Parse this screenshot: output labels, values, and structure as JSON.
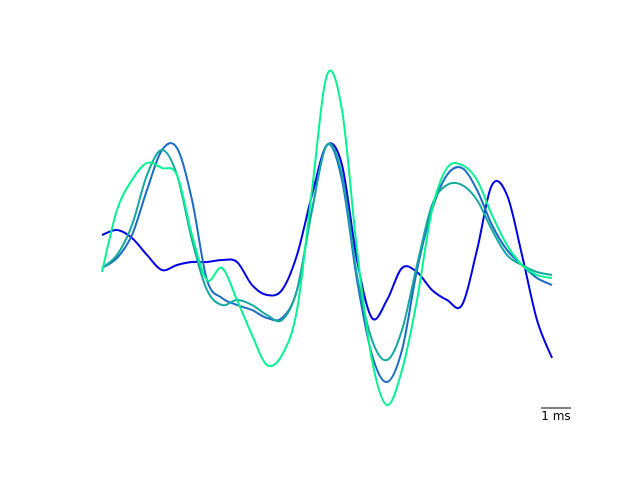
{
  "chart_data": {
    "type": "line",
    "x": [
      0,
      0.5,
      1,
      1.5,
      2,
      2.5,
      3,
      3.5,
      4,
      4.5,
      5,
      5.5,
      6,
      6.5,
      7,
      7.5,
      8,
      8.5,
      9,
      9.5,
      10,
      10.5,
      11,
      11.5,
      12,
      12.5,
      13,
      13.5,
      14,
      14.5,
      15
    ],
    "xlim": [
      0,
      15
    ],
    "ylim": [
      -15,
      21
    ],
    "series": [
      {
        "color": "#0000e6",
        "values": [
          3.5,
          4.0,
          3.2,
          1.5,
          0,
          0.5,
          0.8,
          0.8,
          1.0,
          0.8,
          -1.5,
          -2.5,
          -2.0,
          1.5,
          7.5,
          12.5,
          10.5,
          1.0,
          -4.8,
          -3.0,
          0.2,
          -0.2,
          -2.0,
          -3.0,
          -3.5,
          2.0,
          8.5,
          7.5,
          1.5,
          -5.0,
          -8.8
        ]
      },
      {
        "color": "#1c6cc4",
        "values": [
          0.2,
          1.2,
          3.5,
          8.0,
          12.0,
          12.2,
          7.0,
          -1.0,
          -2.8,
          -3.5,
          -4.0,
          -4.8,
          -4.8,
          -2.0,
          6.0,
          12.5,
          9.0,
          -1.0,
          -8.5,
          -11.2,
          -8.0,
          0,
          6.0,
          9.5,
          10.2,
          8.0,
          4.5,
          2.0,
          0.5,
          -0.8,
          -1.5
        ]
      },
      {
        "color": "#14a8a0",
        "values": [
          0.2,
          1.5,
          4.5,
          9.5,
          12.0,
          9.5,
          3.0,
          -2.0,
          -3.5,
          -3.0,
          -3.5,
          -4.5,
          -5.0,
          -2.0,
          6.0,
          12.5,
          9.5,
          -0.5,
          -7.0,
          -9.0,
          -6.0,
          0.5,
          6.5,
          8.5,
          8.5,
          7.0,
          4.0,
          1.5,
          0.5,
          -0.2,
          -0.5
        ]
      },
      {
        "color": "#00f590",
        "values": [
          -0.2,
          6.0,
          9.0,
          10.7,
          10.2,
          9.5,
          3.5,
          -1.0,
          0.2,
          -3.0,
          -6.5,
          -9.5,
          -8.5,
          -4.0,
          8.0,
          19.5,
          16.0,
          2.0,
          -9.0,
          -13.5,
          -10.0,
          -3.0,
          6.0,
          10.2,
          10.5,
          9.0,
          5.5,
          2.5,
          0.5,
          -0.5,
          -0.8
        ]
      }
    ],
    "scalebar": {
      "length": 1,
      "label": "1 ms"
    }
  }
}
